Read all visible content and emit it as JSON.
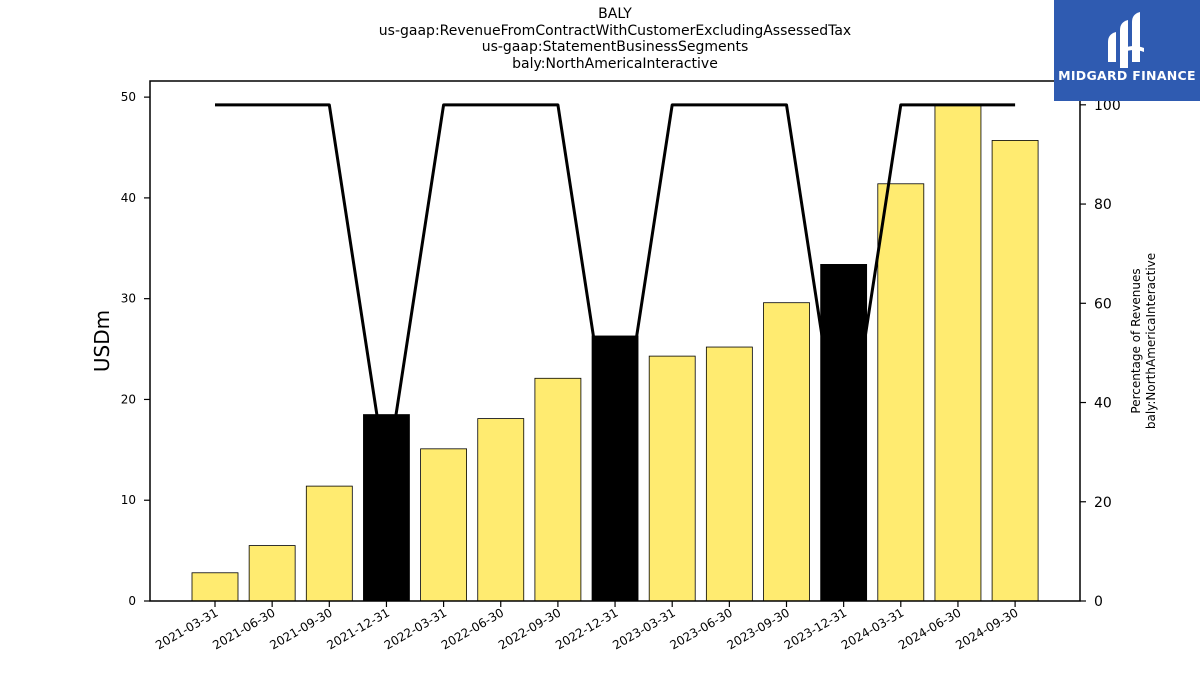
{
  "header": {
    "title_lines": [
      "BALY",
      "us-gaap:RevenueFromContractWithCustomerExcludingAssessedTax",
      "us-gaap:StatementBusinessSegments",
      "baly:NorthAmericaInteractive"
    ]
  },
  "logo": {
    "text": "MIDGARD FINANCE",
    "background": "#2f5bb1"
  },
  "chart_data": {
    "type": "bar",
    "categories": [
      "2021-03-31",
      "2021-06-30",
      "2021-09-30",
      "2021-12-31",
      "2022-03-31",
      "2022-06-30",
      "2022-09-30",
      "2022-12-31",
      "2023-03-31",
      "2023-06-30",
      "2023-09-30",
      "2023-12-31",
      "2024-03-31",
      "2024-06-30",
      "2024-09-30"
    ],
    "series": [
      {
        "values": [
          2.8,
          5.5,
          11.4,
          18.5,
          15.1,
          18.1,
          22.1,
          26.3,
          24.3,
          25.2,
          29.6,
          33.4,
          41.4,
          49.2,
          45.7
        ],
        "bar_colors": [
          "#ffeb70",
          "#ffeb70",
          "#ffeb70",
          "#000000",
          "#ffeb70",
          "#ffeb70",
          "#ffeb70",
          "#000000",
          "#ffeb70",
          "#ffeb70",
          "#ffeb70",
          "#000000",
          "#ffeb70",
          "#ffeb70",
          "#ffeb70"
        ],
        "axis": "left"
      },
      {
        "type": "line",
        "values": [
          100,
          100,
          100,
          25,
          100,
          100,
          100,
          25,
          100,
          100,
          100,
          25,
          100,
          100,
          100
        ],
        "color": "#000000",
        "axis": "right"
      }
    ],
    "ylabel": "USDm",
    "ylabel_right_lines": [
      "Percentage of Revenues",
      "baly:NorthAmericaInteractive"
    ],
    "ylim": [
      0,
      51.6
    ],
    "ylim_right": [
      0,
      104.8
    ],
    "yticks": [
      0,
      10,
      20,
      30,
      40,
      50
    ],
    "yticks_right": [
      0,
      20,
      40,
      60,
      80,
      100
    ],
    "grid": false,
    "legend": "none"
  }
}
